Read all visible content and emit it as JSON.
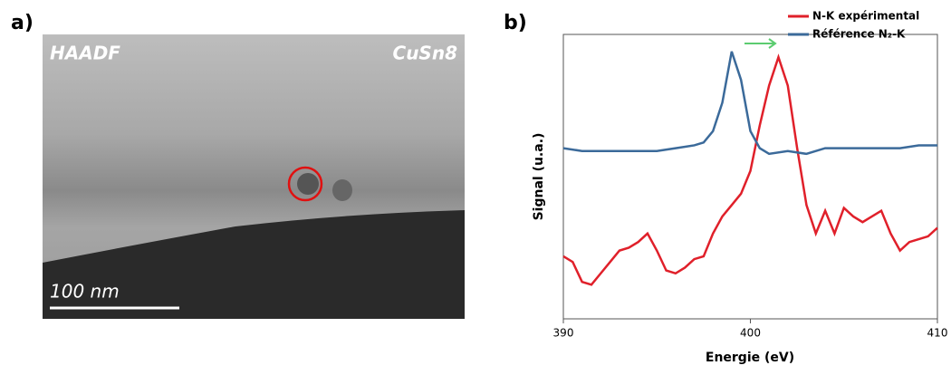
{
  "panel_a": {
    "label": "a)",
    "mode": "HAADF",
    "sample": "CuSn8",
    "scale": "100 nm"
  },
  "chart_data": {
    "type": "line",
    "panel_label": "b)",
    "xlabel": "Energie (eV)",
    "ylabel": "Signal (u.a.)",
    "xlim": [
      390,
      410
    ],
    "xticks": [
      390,
      400,
      410
    ],
    "ylim": [
      0,
      100
    ],
    "legend": "top-right",
    "series": [
      {
        "name": "N-K expérimental",
        "color": "#e0202a",
        "x": [
          390,
          390.5,
          391,
          391.5,
          392,
          392.5,
          393,
          393.5,
          394,
          394.5,
          395,
          395.5,
          396,
          396.5,
          397,
          397.5,
          398,
          398.5,
          399,
          399.5,
          400,
          400.5,
          401,
          401.5,
          402,
          402.5,
          403,
          403.5,
          404,
          404.5,
          405,
          405.5,
          406,
          406.5,
          407,
          407.5,
          408,
          408.5,
          409,
          409.5,
          410
        ],
        "values": [
          22,
          20,
          13,
          12,
          16,
          20,
          24,
          25,
          27,
          30,
          24,
          17,
          16,
          18,
          21,
          22,
          30,
          36,
          40,
          44,
          52,
          68,
          82,
          92,
          82,
          60,
          40,
          30,
          38,
          30,
          39,
          36,
          34,
          36,
          38,
          30,
          24,
          27,
          28,
          29,
          32
        ]
      },
      {
        "name": "Référence N₂-K",
        "color": "#3b6a9a",
        "x": [
          390,
          391,
          392,
          393,
          394,
          395,
          396,
          397,
          397.5,
          398,
          398.5,
          399,
          399.5,
          400,
          400.5,
          401,
          402,
          403,
          404,
          405,
          406,
          407,
          408,
          409,
          410
        ],
        "values": [
          60,
          59,
          59,
          59,
          59,
          59,
          60,
          61,
          62,
          66,
          76,
          94,
          84,
          66,
          60,
          58,
          59,
          58,
          60,
          60,
          60,
          60,
          60,
          61,
          61
        ]
      }
    ]
  }
}
